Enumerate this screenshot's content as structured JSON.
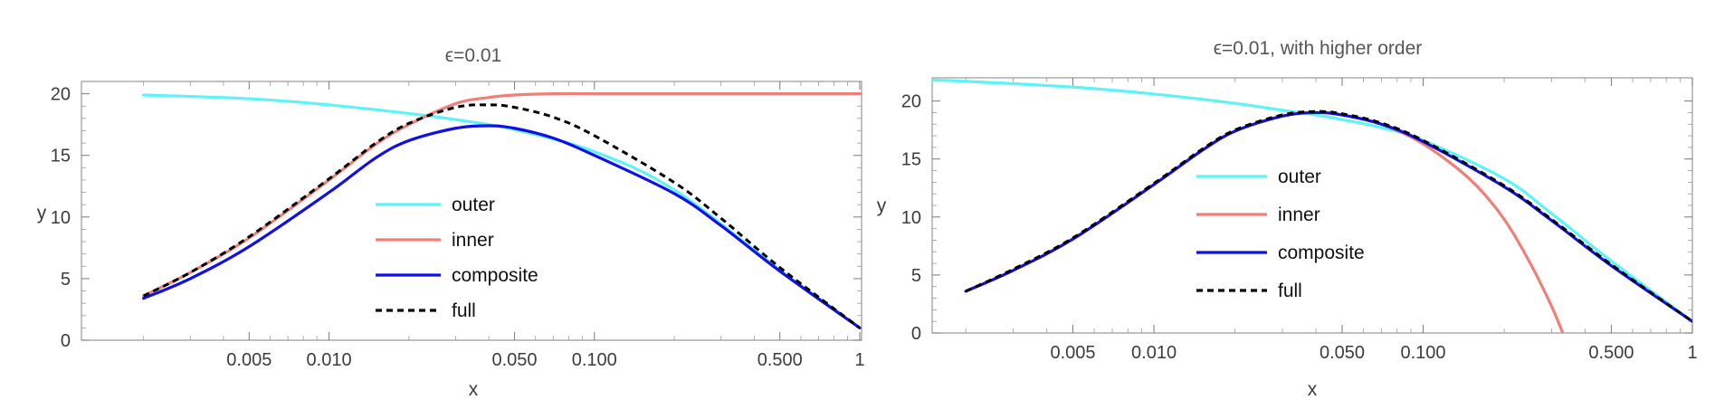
{
  "colors": {
    "outer": "#5ef3f5",
    "inner": "#f07f78",
    "composite": "#1010e6",
    "full": "#000000"
  },
  "chart_data": [
    {
      "type": "line",
      "title": "ϵ=0.01",
      "xlabel": "x",
      "ylabel": "y",
      "xscale": "log",
      "xlim": [
        0.0015,
        1
      ],
      "ylim": [
        0,
        21
      ],
      "xticks": [
        0.005,
        0.01,
        0.05,
        0.1,
        0.5,
        1
      ],
      "xtick_labels": [
        "0.005",
        "0.010",
        "0.050",
        "0.100",
        "0.500",
        "1"
      ],
      "yticks": [
        0,
        5,
        10,
        15,
        20
      ],
      "ytick_labels": [
        "0",
        "5",
        "10",
        "15",
        "20"
      ],
      "grid": false,
      "legend_position": "center",
      "series": [
        {
          "name": "outer",
          "key": "outer",
          "dashed": false,
          "x": [
            0.002,
            0.005,
            0.01,
            0.02,
            0.03,
            0.05,
            0.1,
            0.2,
            0.5,
            1
          ],
          "y": [
            19.9,
            19.6,
            19.1,
            18.4,
            17.9,
            17.1,
            15.3,
            12.2,
            5.7,
            1.0
          ]
        },
        {
          "name": "inner",
          "key": "inner",
          "dashed": false,
          "x": [
            0.002,
            0.003,
            0.005,
            0.01,
            0.015,
            0.02,
            0.03,
            0.04,
            0.05,
            0.07,
            0.1,
            0.2,
            0.5,
            1
          ],
          "y": [
            3.6,
            5.5,
            8.3,
            13.0,
            15.9,
            17.5,
            19.2,
            19.7,
            19.9,
            20.0,
            20.0,
            20.0,
            20.0,
            20.0
          ]
        },
        {
          "name": "composite",
          "key": "composite",
          "dashed": false,
          "x": [
            0.002,
            0.003,
            0.005,
            0.01,
            0.015,
            0.02,
            0.03,
            0.04,
            0.05,
            0.07,
            0.1,
            0.2,
            0.3,
            0.5,
            1
          ],
          "y": [
            3.4,
            5.0,
            7.6,
            12.0,
            14.8,
            16.2,
            17.2,
            17.4,
            17.2,
            16.4,
            15.0,
            11.9,
            9.3,
            5.6,
            1.0
          ]
        },
        {
          "name": "full",
          "key": "full",
          "dashed": true,
          "x": [
            0.002,
            0.003,
            0.005,
            0.01,
            0.015,
            0.02,
            0.03,
            0.04,
            0.05,
            0.07,
            0.1,
            0.2,
            0.3,
            0.5,
            1
          ],
          "y": [
            3.6,
            5.5,
            8.4,
            13.1,
            16.0,
            17.6,
            18.9,
            19.1,
            18.9,
            18.1,
            16.6,
            12.8,
            9.9,
            5.9,
            1.0
          ]
        }
      ]
    },
    {
      "type": "line",
      "title": "ϵ=0.01, with higher order",
      "xlabel": "x",
      "ylabel": "y",
      "xscale": "log",
      "xlim": [
        0.0015,
        1
      ],
      "ylim": [
        0,
        22
      ],
      "xticks": [
        0.005,
        0.01,
        0.05,
        0.1,
        0.5,
        1
      ],
      "xtick_labels": [
        "0.005",
        "0.010",
        "0.050",
        "0.100",
        "0.500",
        "1"
      ],
      "yticks": [
        0,
        5,
        10,
        15,
        20
      ],
      "ytick_labels": [
        "0",
        "5",
        "10",
        "15",
        "20"
      ],
      "grid": false,
      "legend_position": "center",
      "series": [
        {
          "name": "outer",
          "key": "outer",
          "dashed": false,
          "x": [
            0.0015,
            0.002,
            0.005,
            0.01,
            0.02,
            0.03,
            0.04,
            0.05,
            0.07,
            0.1,
            0.2,
            0.3,
            0.5,
            1
          ],
          "y": [
            21.8,
            21.7,
            21.2,
            20.6,
            19.8,
            19.2,
            18.8,
            18.4,
            17.7,
            16.6,
            13.3,
            10.3,
            6.2,
            1.0
          ]
        },
        {
          "name": "inner",
          "key": "inner",
          "dashed": false,
          "x": [
            0.002,
            0.003,
            0.005,
            0.01,
            0.015,
            0.02,
            0.03,
            0.04,
            0.05,
            0.07,
            0.1,
            0.15,
            0.2,
            0.25,
            0.3,
            0.33
          ],
          "y": [
            3.6,
            5.4,
            8.1,
            12.8,
            15.7,
            17.4,
            18.7,
            19.0,
            18.8,
            18.0,
            16.3,
            13.2,
            9.8,
            6.0,
            2.3,
            0
          ]
        },
        {
          "name": "composite",
          "key": "composite",
          "dashed": false,
          "x": [
            0.002,
            0.003,
            0.005,
            0.01,
            0.015,
            0.02,
            0.03,
            0.04,
            0.05,
            0.07,
            0.1,
            0.2,
            0.3,
            0.5,
            1
          ],
          "y": [
            3.6,
            5.4,
            8.1,
            12.8,
            15.7,
            17.4,
            18.7,
            19.0,
            18.8,
            18.0,
            16.5,
            12.6,
            9.7,
            5.8,
            1.0
          ]
        },
        {
          "name": "full",
          "key": "full",
          "dashed": true,
          "x": [
            0.002,
            0.003,
            0.005,
            0.01,
            0.015,
            0.02,
            0.03,
            0.04,
            0.05,
            0.07,
            0.1,
            0.2,
            0.3,
            0.5,
            1
          ],
          "y": [
            3.6,
            5.5,
            8.2,
            12.9,
            15.8,
            17.5,
            18.8,
            19.1,
            18.9,
            18.1,
            16.6,
            12.7,
            9.8,
            5.9,
            1.0
          ]
        }
      ]
    }
  ]
}
